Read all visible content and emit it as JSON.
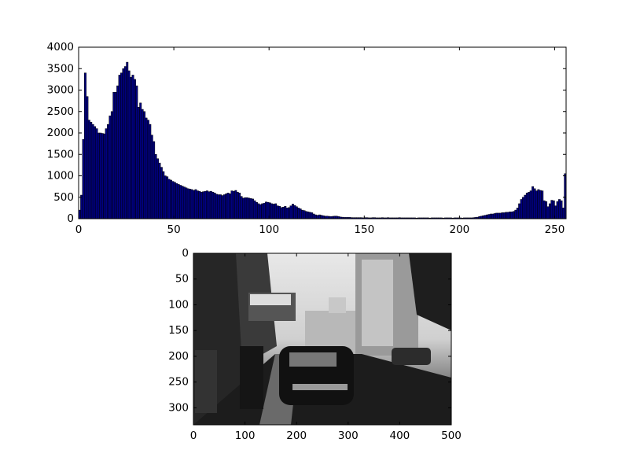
{
  "chart_data": [
    {
      "type": "histogram",
      "bins": [
        0,
        1,
        2,
        3,
        4,
        5,
        6,
        7,
        8,
        9,
        10,
        11,
        12,
        13,
        14,
        15,
        16,
        17,
        18,
        19,
        20,
        21,
        22,
        23,
        24,
        25,
        26,
        27,
        28,
        29,
        30,
        31,
        32,
        33,
        34,
        35,
        36,
        37,
        38,
        39,
        40,
        41,
        42,
        43,
        44,
        45,
        46,
        47,
        48,
        49,
        50,
        51,
        52,
        53,
        54,
        55,
        56,
        57,
        58,
        59,
        60,
        61,
        62,
        63,
        64,
        65,
        66,
        67,
        68,
        69,
        70,
        71,
        72,
        73,
        74,
        75,
        76,
        77,
        78,
        79,
        80,
        81,
        82,
        83,
        84,
        85,
        86,
        87,
        88,
        89,
        90,
        91,
        92,
        93,
        94,
        95,
        96,
        97,
        98,
        99,
        100,
        101,
        102,
        103,
        104,
        105,
        106,
        107,
        108,
        109,
        110,
        111,
        112,
        113,
        114,
        115,
        116,
        117,
        118,
        119,
        120,
        121,
        122,
        123,
        124,
        125,
        126,
        127,
        128,
        129,
        130,
        131,
        132,
        133,
        134,
        135,
        136,
        137,
        138,
        139,
        140,
        141,
        142,
        143,
        144,
        145,
        146,
        147,
        148,
        149,
        150,
        151,
        152,
        153,
        154,
        155,
        156,
        157,
        158,
        159,
        160,
        161,
        162,
        163,
        164,
        165,
        166,
        167,
        168,
        169,
        170,
        171,
        172,
        173,
        174,
        175,
        176,
        177,
        178,
        179,
        180,
        181,
        182,
        183,
        184,
        185,
        186,
        187,
        188,
        189,
        190,
        191,
        192,
        193,
        194,
        195,
        196,
        197,
        198,
        199,
        200,
        201,
        202,
        203,
        204,
        205,
        206,
        207,
        208,
        209,
        210,
        211,
        212,
        213,
        214,
        215,
        216,
        217,
        218,
        219,
        220,
        221,
        222,
        223,
        224,
        225,
        226,
        227,
        228,
        229,
        230,
        231,
        232,
        233,
        234,
        235,
        236,
        237,
        238,
        239,
        240,
        241,
        242,
        243,
        244,
        245,
        246,
        247,
        248,
        249,
        250,
        251,
        252,
        253,
        254,
        255,
        256
      ],
      "values": [
        200,
        550,
        1850,
        3400,
        2850,
        2300,
        2250,
        2200,
        2150,
        2100,
        2000,
        2000,
        1990,
        1980,
        2100,
        2200,
        2400,
        2500,
        2950,
        2950,
        3100,
        3350,
        3400,
        3500,
        3550,
        3650,
        3450,
        3300,
        3350,
        3250,
        3100,
        2600,
        2700,
        2550,
        2500,
        2350,
        2300,
        2200,
        1950,
        1800,
        1500,
        1400,
        1300,
        1200,
        1100,
        1000,
        980,
        920,
        900,
        870,
        850,
        820,
        800,
        780,
        760,
        740,
        720,
        700,
        690,
        680,
        660,
        680,
        650,
        640,
        620,
        630,
        640,
        650,
        630,
        640,
        620,
        600,
        570,
        560,
        560,
        540,
        560,
        580,
        600,
        580,
        650,
        640,
        660,
        620,
        600,
        520,
        480,
        490,
        490,
        480,
        470,
        460,
        420,
        380,
        350,
        330,
        350,
        360,
        390,
        380,
        370,
        350,
        340,
        350,
        300,
        290,
        260,
        270,
        290,
        250,
        260,
        300,
        340,
        310,
        280,
        250,
        230,
        200,
        190,
        170,
        160,
        150,
        140,
        110,
        90,
        80,
        90,
        80,
        70,
        60,
        60,
        55,
        50,
        55,
        60,
        60,
        50,
        40,
        35,
        30,
        30,
        30,
        30,
        25,
        25,
        25,
        25,
        25,
        25,
        20,
        25,
        25,
        20,
        20,
        25,
        25,
        20,
        20,
        20,
        25,
        20,
        20,
        25,
        20,
        20,
        20,
        20,
        20,
        25,
        20,
        20,
        20,
        20,
        20,
        20,
        20,
        20,
        15,
        20,
        20,
        20,
        20,
        20,
        20,
        15,
        20,
        20,
        20,
        20,
        20,
        20,
        15,
        20,
        20,
        20,
        20,
        15,
        20,
        20,
        20,
        20,
        15,
        20,
        20,
        20,
        20,
        20,
        25,
        30,
        35,
        50,
        60,
        70,
        80,
        90,
        100,
        110,
        110,
        120,
        130,
        130,
        130,
        140,
        140,
        150,
        150,
        160,
        160,
        170,
        200,
        250,
        350,
        450,
        500,
        550,
        600,
        620,
        650,
        750,
        700,
        650,
        680,
        660,
        650,
        420,
        400,
        280,
        350,
        430,
        420,
        300,
        400,
        450,
        420,
        250,
        1050
      ],
      "color": "#00007f",
      "xlim": [
        0,
        256
      ],
      "xticks": [
        0,
        50,
        100,
        150,
        200,
        250
      ],
      "ylim": [
        0,
        4000
      ],
      "yticks": [
        0,
        500,
        1000,
        1500,
        2000,
        2500,
        3000,
        3500,
        4000
      ]
    },
    {
      "type": "image",
      "xlim": [
        0,
        500
      ],
      "xticks": [
        0,
        100,
        200,
        300,
        400,
        500
      ],
      "ylim": [
        333,
        0
      ],
      "yticks": [
        0,
        50,
        100,
        150,
        200,
        250,
        300
      ]
    }
  ]
}
